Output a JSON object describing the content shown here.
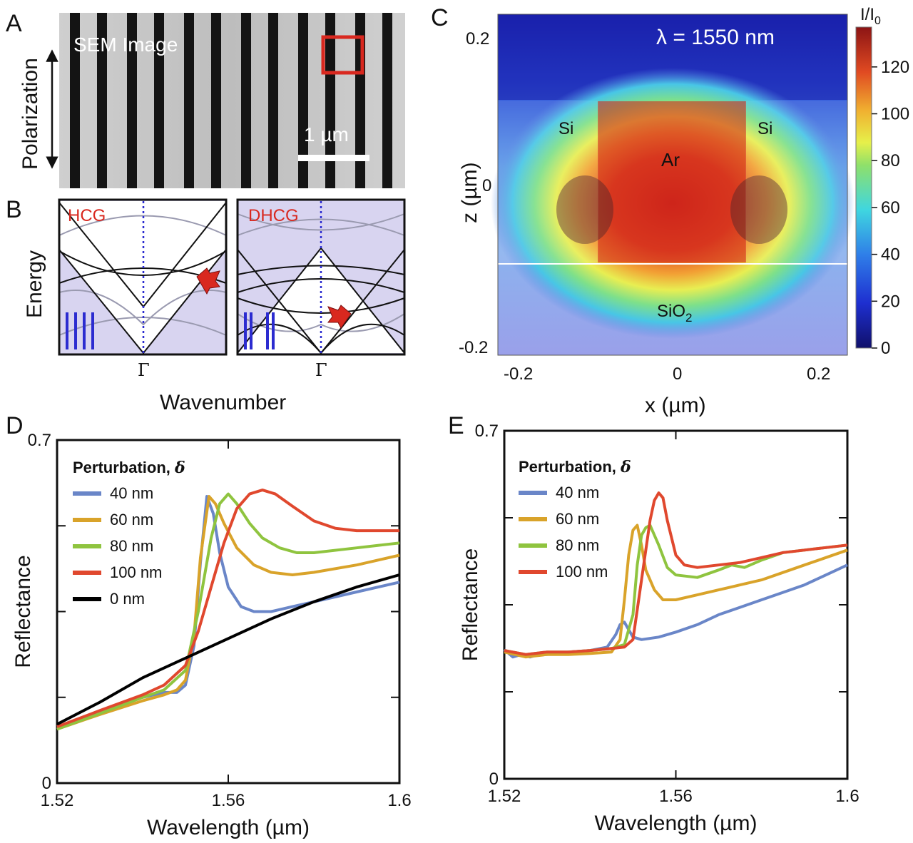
{
  "panels": {
    "a": {
      "letter": "A",
      "image_label": "SEM Image",
      "scalebar_label": "1 µm",
      "polarization_label": "Polarization"
    },
    "b": {
      "letter": "B",
      "left_title": "HCG",
      "right_title": "DHCG",
      "gamma_left": "Γ",
      "gamma_right": "Γ",
      "xlabel": "Wavenumber",
      "ylabel": "Energy"
    },
    "c": {
      "letter": "C",
      "wavelength_label": "λ = 1550 nm",
      "si_left": "Si",
      "si_right": "Si",
      "ar_label": "Ar",
      "sio2_label": "SiO",
      "sio2_sub": "2",
      "xlabel": "x (µm)",
      "ylabel": "z (µm)",
      "xticks": [
        "-0.2",
        "0",
        "0.2"
      ],
      "yticks": [
        "0.2",
        "0",
        "-0.2"
      ],
      "colorbar_title": "I/I",
      "colorbar_sub": "0",
      "colorbar_ticks": [
        "0",
        "20",
        "40",
        "60",
        "80",
        "100",
        "120"
      ]
    },
    "d": {
      "letter": "D"
    },
    "e": {
      "letter": "E"
    }
  },
  "colors": {
    "c40": "#6a86c8",
    "c60": "#d9a32a",
    "c80": "#8fc43f",
    "c100": "#e0482e",
    "c0": "#000000",
    "accent_red": "#d9281f",
    "band_blue": "#2c2cd0",
    "lattice_bg": "#d8d4f0"
  },
  "chart_data": [
    {
      "id": "D",
      "type": "line",
      "title": "",
      "xlabel": "Wavelength (µm)",
      "ylabel": "Reflectance",
      "xlim": [
        1.52,
        1.6
      ],
      "ylim": [
        0,
        0.7
      ],
      "xticks": [
        "1.52",
        "1.56",
        "1.6"
      ],
      "yticks": [
        "0",
        "0.7"
      ],
      "legend_title": "Perturbation,",
      "legend_symbol": "δ",
      "series": [
        {
          "name": "40 nm",
          "color": "#6a86c8",
          "x": [
            1.52,
            1.53,
            1.54,
            1.545,
            1.548,
            1.55,
            1.552,
            1.5535,
            1.555,
            1.5565,
            1.558,
            1.56,
            1.563,
            1.566,
            1.57,
            1.575,
            1.58,
            1.59,
            1.6
          ],
          "y": [
            0.115,
            0.145,
            0.175,
            0.185,
            0.185,
            0.2,
            0.28,
            0.45,
            0.585,
            0.55,
            0.47,
            0.4,
            0.36,
            0.35,
            0.35,
            0.36,
            0.37,
            0.39,
            0.41
          ]
        },
        {
          "name": "60 nm",
          "color": "#d9a32a",
          "x": [
            1.52,
            1.53,
            1.54,
            1.545,
            1.548,
            1.55,
            1.552,
            1.5535,
            1.5555,
            1.557,
            1.559,
            1.562,
            1.566,
            1.57,
            1.575,
            1.58,
            1.59,
            1.6
          ],
          "y": [
            0.11,
            0.14,
            0.168,
            0.18,
            0.19,
            0.21,
            0.3,
            0.46,
            0.585,
            0.57,
            0.53,
            0.48,
            0.445,
            0.43,
            0.425,
            0.43,
            0.445,
            0.465
          ]
        },
        {
          "name": "80 nm",
          "color": "#8fc43f",
          "x": [
            1.52,
            1.53,
            1.54,
            1.545,
            1.55,
            1.553,
            1.556,
            1.558,
            1.56,
            1.562,
            1.565,
            1.568,
            1.572,
            1.576,
            1.58,
            1.59,
            1.6
          ],
          "y": [
            0.11,
            0.142,
            0.175,
            0.19,
            0.23,
            0.35,
            0.5,
            0.57,
            0.59,
            0.57,
            0.53,
            0.5,
            0.48,
            0.47,
            0.47,
            0.48,
            0.49
          ]
        },
        {
          "name": "100 nm",
          "color": "#e0482e",
          "x": [
            1.52,
            1.53,
            1.54,
            1.545,
            1.55,
            1.553,
            1.556,
            1.559,
            1.562,
            1.565,
            1.568,
            1.571,
            1.575,
            1.58,
            1.585,
            1.59,
            1.6
          ],
          "y": [
            0.115,
            0.148,
            0.18,
            0.2,
            0.24,
            0.31,
            0.4,
            0.49,
            0.56,
            0.59,
            0.598,
            0.59,
            0.565,
            0.535,
            0.52,
            0.515,
            0.515
          ]
        },
        {
          "name": "0 nm",
          "color": "#000000",
          "x": [
            1.52,
            1.53,
            1.54,
            1.55,
            1.56,
            1.57,
            1.58,
            1.59,
            1.6
          ],
          "y": [
            0.12,
            0.165,
            0.215,
            0.255,
            0.295,
            0.335,
            0.37,
            0.4,
            0.425
          ]
        }
      ]
    },
    {
      "id": "E",
      "type": "line",
      "title": "",
      "xlabel": "Wavelength (µm)",
      "ylabel": "Reflectance",
      "xlim": [
        1.52,
        1.6
      ],
      "ylim": [
        0,
        0.7
      ],
      "xticks": [
        "1.52",
        "1.56",
        "1.6"
      ],
      "yticks": [
        "0",
        "0.7"
      ],
      "legend_title": "Perturbation,",
      "legend_symbol": "δ",
      "series": [
        {
          "name": "40 nm",
          "color": "#6a86c8",
          "x": [
            1.52,
            1.522,
            1.524,
            1.526,
            1.528,
            1.53,
            1.535,
            1.54,
            1.544,
            1.546,
            1.547,
            1.548,
            1.549,
            1.55,
            1.552,
            1.556,
            1.56,
            1.565,
            1.57,
            1.575,
            1.58,
            1.585,
            1.59,
            1.595,
            1.6
          ],
          "y": [
            0.26,
            0.245,
            0.25,
            0.245,
            0.25,
            0.25,
            0.255,
            0.258,
            0.265,
            0.29,
            0.31,
            0.315,
            0.3,
            0.285,
            0.28,
            0.285,
            0.295,
            0.31,
            0.33,
            0.345,
            0.36,
            0.375,
            0.39,
            0.41,
            0.43
          ]
        },
        {
          "name": "60 nm",
          "color": "#d9a32a",
          "x": [
            1.52,
            1.525,
            1.53,
            1.535,
            1.54,
            1.545,
            1.547,
            1.548,
            1.549,
            1.55,
            1.551,
            1.552,
            1.553,
            1.555,
            1.557,
            1.56,
            1.565,
            1.57,
            1.575,
            1.58,
            1.585,
            1.59,
            1.595,
            1.6
          ],
          "y": [
            0.255,
            0.245,
            0.25,
            0.25,
            0.252,
            0.255,
            0.28,
            0.36,
            0.45,
            0.5,
            0.51,
            0.47,
            0.42,
            0.38,
            0.36,
            0.36,
            0.37,
            0.38,
            0.39,
            0.4,
            0.415,
            0.43,
            0.445,
            0.46
          ]
        },
        {
          "name": "80 nm",
          "color": "#8fc43f",
          "x": [
            1.52,
            1.525,
            1.53,
            1.535,
            1.54,
            1.545,
            1.548,
            1.55,
            1.551,
            1.552,
            1.553,
            1.554,
            1.556,
            1.558,
            1.56,
            1.565,
            1.57,
            1.573,
            1.576,
            1.58,
            1.585,
            1.59,
            1.595,
            1.6
          ],
          "y": [
            0.258,
            0.25,
            0.255,
            0.255,
            0.258,
            0.262,
            0.27,
            0.33,
            0.43,
            0.49,
            0.505,
            0.51,
            0.47,
            0.425,
            0.41,
            0.405,
            0.42,
            0.43,
            0.425,
            0.44,
            0.455,
            0.46,
            0.465,
            0.47
          ]
        },
        {
          "name": "100 nm",
          "color": "#e0482e",
          "x": [
            1.52,
            1.525,
            1.53,
            1.535,
            1.54,
            1.545,
            1.548,
            1.55,
            1.552,
            1.554,
            1.555,
            1.556,
            1.557,
            1.558,
            1.56,
            1.562,
            1.565,
            1.57,
            1.575,
            1.58,
            1.585,
            1.59,
            1.595,
            1.6
          ],
          "y": [
            0.258,
            0.25,
            0.255,
            0.255,
            0.258,
            0.262,
            0.265,
            0.28,
            0.4,
            0.52,
            0.56,
            0.575,
            0.565,
            0.52,
            0.45,
            0.43,
            0.425,
            0.43,
            0.435,
            0.445,
            0.455,
            0.46,
            0.465,
            0.47
          ]
        }
      ]
    }
  ]
}
